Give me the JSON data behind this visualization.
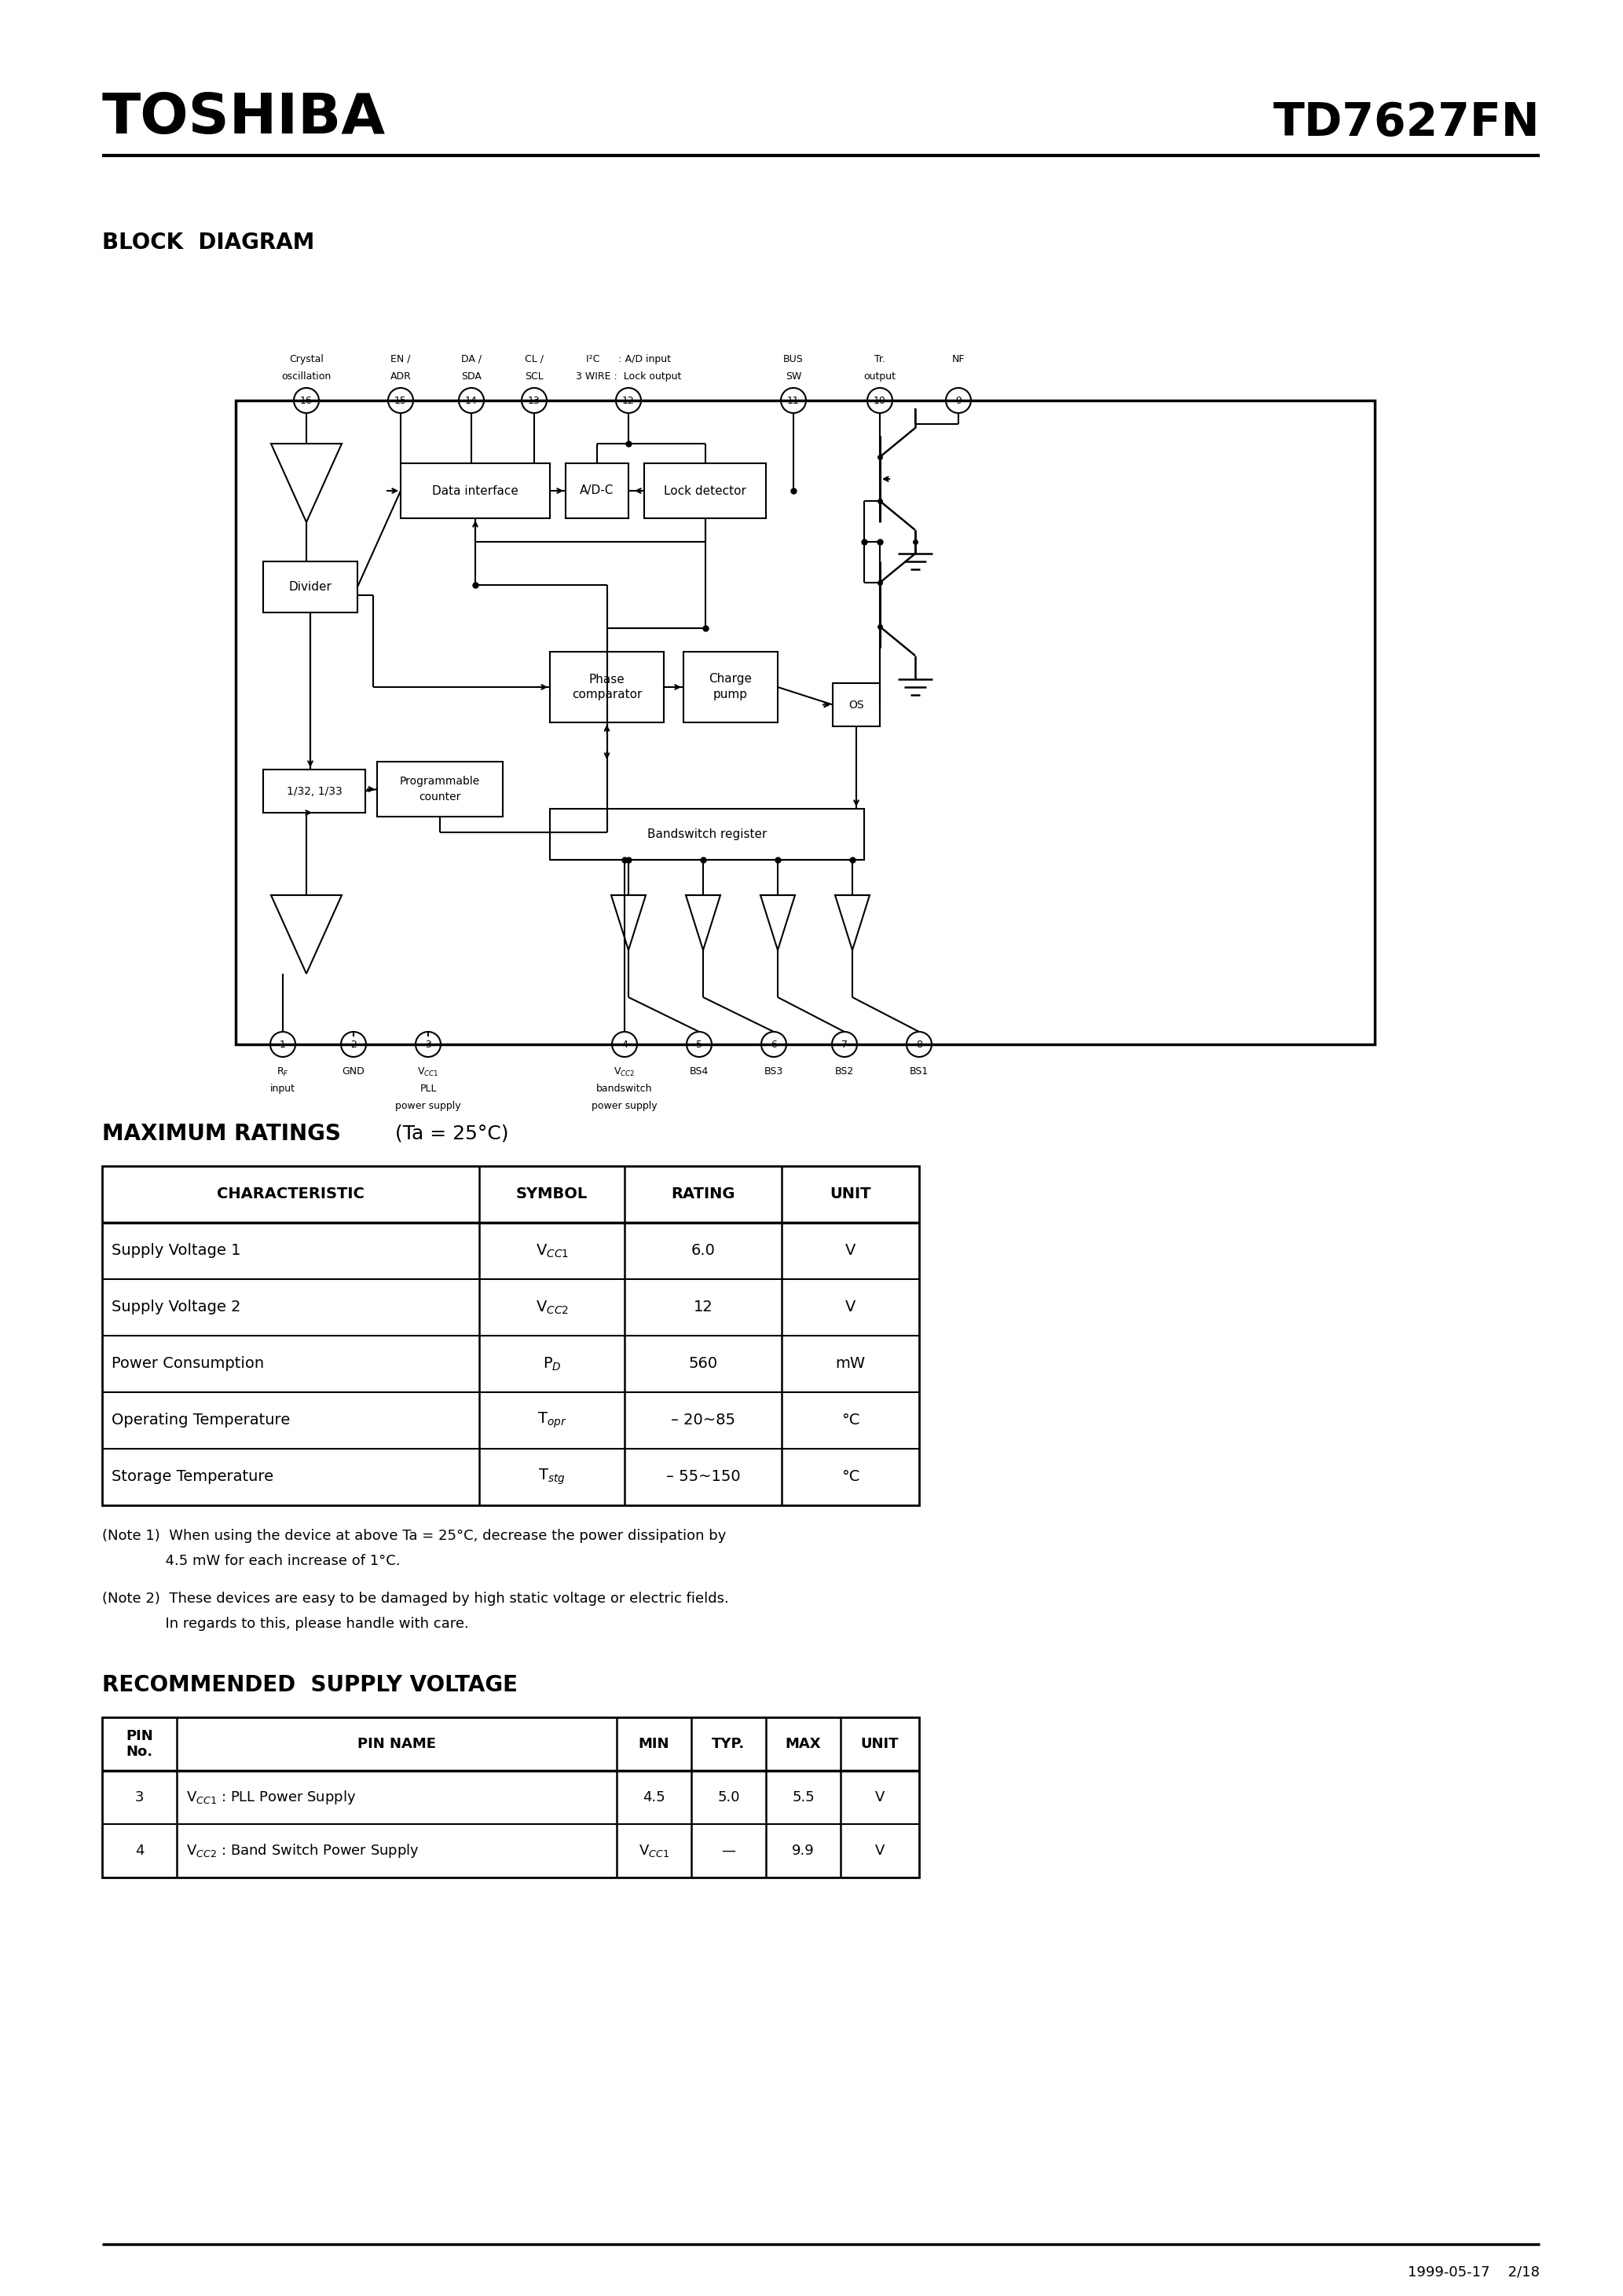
{
  "title_left": "TOSHIBA",
  "title_right": "TD7627FN",
  "section1": "BLOCK  DIAGRAM",
  "section2": "MAXIMUM RATINGS",
  "section2_sub": " (Ta = 25°C)",
  "section3": "RECOMMENDED  SUPPLY VOLTAGE",
  "max_ratings_headers": [
    "CHARACTERISTIC",
    "SYMBOL",
    "RATING",
    "UNIT"
  ],
  "max_ratings_rows": [
    [
      "Supply Voltage 1",
      "V$_{CC1}$",
      "6.0",
      "V"
    ],
    [
      "Supply Voltage 2",
      "V$_{CC2}$",
      "12",
      "V"
    ],
    [
      "Power Consumption",
      "P$_{D}$",
      "560",
      "mW"
    ],
    [
      "Operating Temperature",
      "T$_{opr}$",
      "– 20~85",
      "°C"
    ],
    [
      "Storage Temperature",
      "T$_{stg}$",
      "– 55~150",
      "°C"
    ]
  ],
  "note1a": "(Note 1)  When using the device at above Ta = 25°C, decrease the power dissipation by",
  "note1b": "              4.5 mW for each increase of 1°C.",
  "note2a": "(Note 2)  These devices are easy to be damaged by high static voltage or electric fields.",
  "note2b": "              In regards to this, please handle with care.",
  "rec_headers": [
    "PIN\nNo.",
    "PIN NAME",
    "MIN",
    "TYP.",
    "MAX",
    "UNIT"
  ],
  "rec_rows": [
    [
      "3",
      "V$_{CC1}$ : PLL Power Supply",
      "4.5",
      "5.0",
      "5.5",
      "V"
    ],
    [
      "4",
      "V$_{CC2}$ : Band Switch Power Supply",
      "V$_{CC1}$",
      "—",
      "9.9",
      "V"
    ]
  ],
  "footer": "1999-05-17    2/18",
  "bg_color": "#ffffff",
  "text_color": "#000000"
}
